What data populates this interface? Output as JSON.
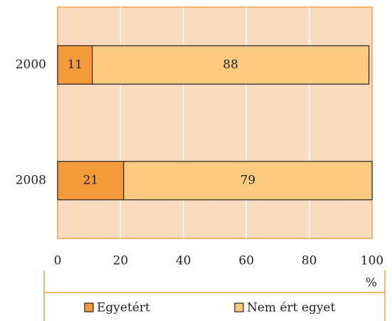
{
  "chart_data": {
    "type": "stacked-barh",
    "categories": [
      "2000",
      "2008"
    ],
    "series": [
      {
        "name": "Egyetért",
        "color": "#f39a3a",
        "values": [
          11,
          21
        ]
      },
      {
        "name": "Nem ért egyet",
        "color": "#fccb7f",
        "values": [
          88,
          79
        ]
      }
    ],
    "xlim": [
      0,
      100
    ],
    "xticks": [
      0,
      20,
      40,
      60,
      80,
      100
    ],
    "x_label": "%",
    "grid": true,
    "legend": "bottom"
  }
}
